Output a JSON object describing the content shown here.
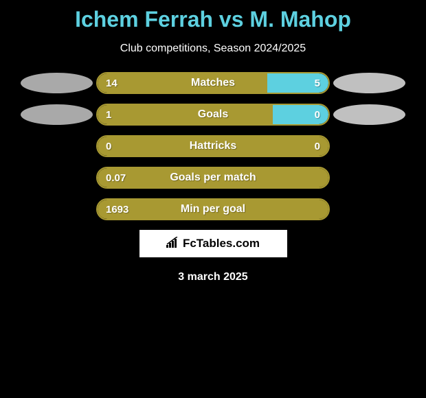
{
  "title": {
    "player1": "Ichem Ferrah",
    "vs": "vs",
    "player2": "M. Mahop",
    "color": "#5dd0e0"
  },
  "subtitle": "Club competitions, Season 2024/2025",
  "avatar_left_color": "#a9a9a9",
  "avatar_right_color": "#c0c0c0",
  "stats": [
    {
      "label": "Matches",
      "left_value": "14",
      "right_value": "5",
      "left_pct": 73.5,
      "right_pct": 26.5,
      "left_color": "#a89932",
      "right_color": "#5dd0e0",
      "border_color": "#a89932",
      "show_avatars": true
    },
    {
      "label": "Goals",
      "left_value": "1",
      "right_value": "0",
      "left_pct": 76,
      "right_pct": 24,
      "left_color": "#a89932",
      "right_color": "#5dd0e0",
      "border_color": "#a89932",
      "show_avatars": true
    },
    {
      "label": "Hattricks",
      "left_value": "0",
      "right_value": "0",
      "left_pct": 100,
      "right_pct": 0,
      "left_color": "#a89932",
      "right_color": "#5dd0e0",
      "border_color": "#a89932",
      "show_avatars": false
    },
    {
      "label": "Goals per match",
      "left_value": "0.07",
      "right_value": "",
      "left_pct": 100,
      "right_pct": 0,
      "left_color": "#a89932",
      "right_color": "#5dd0e0",
      "border_color": "#a89932",
      "show_avatars": false
    },
    {
      "label": "Min per goal",
      "left_value": "1693",
      "right_value": "",
      "left_pct": 100,
      "right_pct": 0,
      "left_color": "#a89932",
      "right_color": "#5dd0e0",
      "border_color": "#a89932",
      "show_avatars": false
    }
  ],
  "logo": {
    "text": "FcTables.com",
    "background": "#ffffff",
    "text_color": "#000000"
  },
  "date": "3 march 2025",
  "background_color": "#000000",
  "text_color": "#ffffff"
}
